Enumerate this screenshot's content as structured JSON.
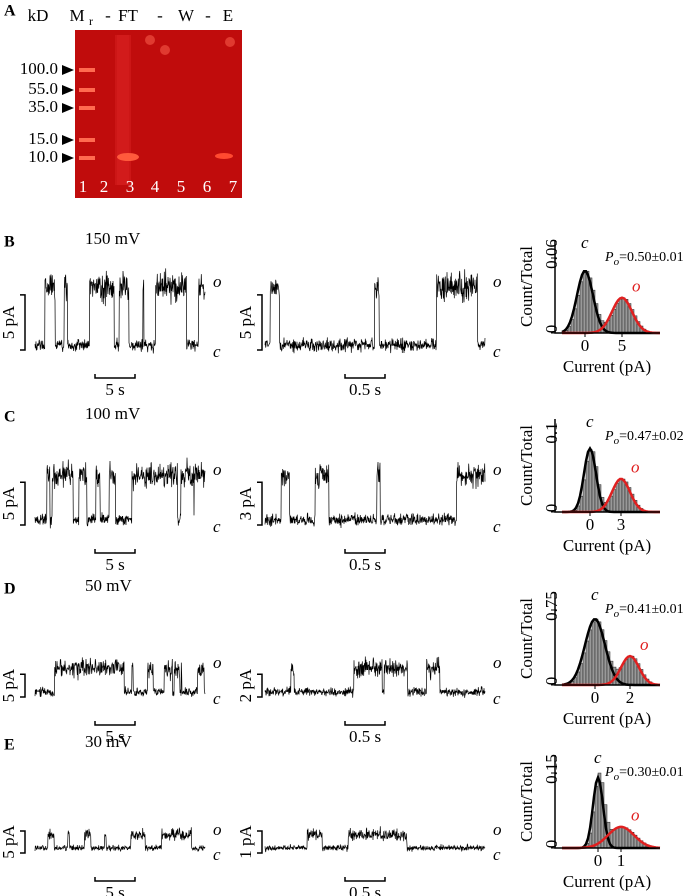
{
  "panel_a": {
    "label": "A",
    "header": [
      "kD",
      "M",
      "r",
      "-",
      "FT",
      "-",
      "W",
      "-",
      "E"
    ],
    "markers": [
      "100.0",
      "55.0",
      "35.0",
      "15.0",
      "10.0"
    ],
    "lanes": [
      "1",
      "2",
      "3",
      "4",
      "5",
      "6",
      "7"
    ]
  },
  "open_state": "o",
  "closed_state": "c",
  "hist_y_label": "Count/Total",
  "hist_x_label": "Current (pA)",
  "po_symbol": "P",
  "po_sub": "o",
  "panels": [
    {
      "label": "B",
      "voltage": "150 mV",
      "trace1": {
        "scale_y": "5 pA",
        "scale_x": "5 s"
      },
      "trace2": {
        "scale_y": "5 pA",
        "scale_x": "0.5 s"
      },
      "histogram": {
        "yticks": [
          "0.06",
          "0"
        ],
        "xticks": [
          "0",
          "5"
        ],
        "po_value": "=0.50±0.01"
      }
    },
    {
      "label": "C",
      "voltage": "100 mV",
      "trace1": {
        "scale_y": "5 pA",
        "scale_x": "5 s"
      },
      "trace2": {
        "scale_y": "3 pA",
        "scale_x": "0.5 s"
      },
      "histogram": {
        "yticks": [
          "0.1",
          "0"
        ],
        "xticks": [
          "0",
          "3"
        ],
        "po_value": "=0.47±0.02"
      }
    },
    {
      "label": "D",
      "voltage": "50 mV",
      "trace1": {
        "scale_y": "5 pA",
        "scale_x": "5 s"
      },
      "trace2": {
        "scale_y": "2 pA",
        "scale_x": "0.5 s"
      },
      "histogram": {
        "yticks": [
          "0.75",
          "0"
        ],
        "xticks": [
          "0",
          "2"
        ],
        "po_value": "=0.41±0.01"
      }
    },
    {
      "label": "E",
      "voltage": "30 mV",
      "trace1": {
        "scale_y": "5 pA",
        "scale_x": "5 s"
      },
      "trace2": {
        "scale_y": "1 pA",
        "scale_x": "0.5 s"
      },
      "histogram": {
        "yticks": [
          "0.15",
          "0"
        ],
        "xticks": [
          "0",
          "1"
        ],
        "po_value": "=0.30±0.01"
      }
    }
  ]
}
